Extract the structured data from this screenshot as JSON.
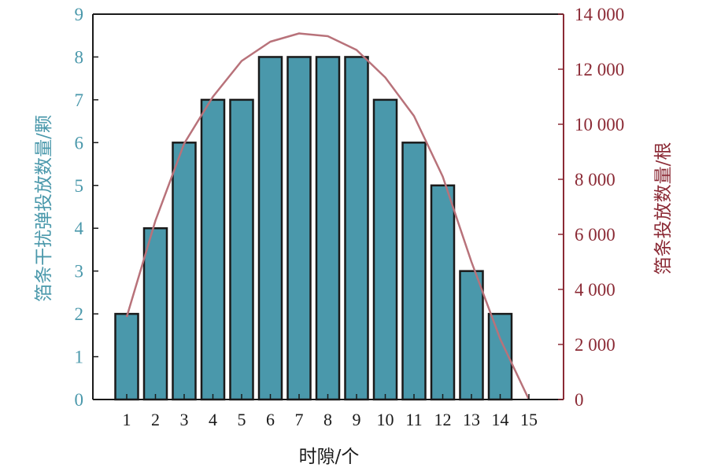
{
  "chart_data": {
    "type": "bar",
    "categories": [
      "1",
      "2",
      "3",
      "4",
      "5",
      "6",
      "7",
      "8",
      "9",
      "10",
      "11",
      "12",
      "13",
      "14",
      "15"
    ],
    "xlabel": "时隙/个",
    "ylabel_left": "箔条干扰弹投放数量/颗",
    "ylabel_right": "箔条投放数量/根",
    "ylim_left": [
      0,
      9
    ],
    "ylim_right": [
      0,
      14000
    ],
    "yticks_left": [
      0,
      1,
      2,
      3,
      4,
      5,
      6,
      7,
      8,
      9
    ],
    "yticks_right": [
      0,
      2000,
      4000,
      6000,
      8000,
      10000,
      12000,
      14000
    ],
    "ytick_labels_right": [
      "0",
      "2 000",
      "4 000",
      "6 000",
      "8 000",
      "10 000",
      "12 000",
      "14 000"
    ],
    "grid": false,
    "series": [
      {
        "axis": "left",
        "kind": "bar",
        "values": [
          2,
          4,
          6,
          7,
          7,
          8,
          8,
          8,
          8,
          7,
          6,
          5,
          3,
          2,
          null
        ]
      },
      {
        "axis": "right",
        "kind": "line",
        "values": [
          3000,
          6500,
          9300,
          11000,
          12300,
          13000,
          13300,
          13200,
          12700,
          11700,
          10300,
          8100,
          5000,
          2200,
          0
        ]
      }
    ],
    "colors": {
      "bar": "#4a98ab",
      "bar_edge": "#1a1a1a",
      "line": "#b8727a",
      "left_axis": "#4a98ab",
      "right_axis": "#8b2a35",
      "frame": "#1a1a1a"
    }
  }
}
